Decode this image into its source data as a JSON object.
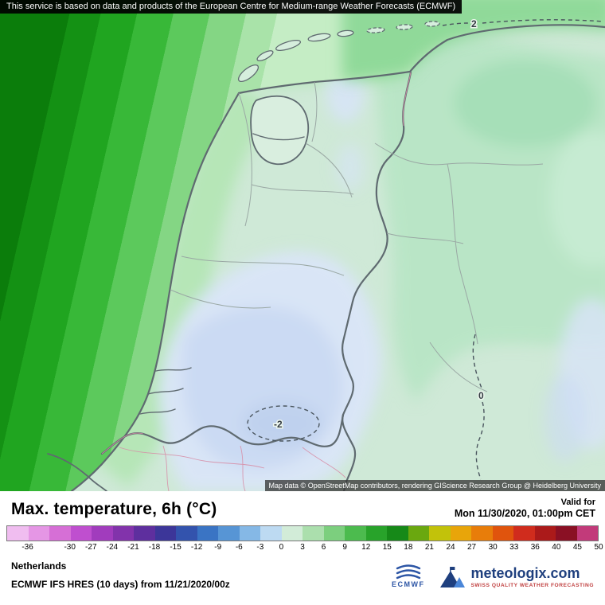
{
  "banner": {
    "text": "This service is based on data and products of the European Centre for Medium-range Weather Forecasts (ECMWF)"
  },
  "map": {
    "attribution": "Map data © OpenStreetMap contributors, rendering GIScience Research Group @ Heidelberg University",
    "contour_labels": [
      {
        "value": "2"
      },
      {
        "value": "0"
      },
      {
        "value": "-2"
      }
    ],
    "palette": {
      "land": "#cfe9d7",
      "sea1": "#0b7d0b",
      "sea2": "#149114",
      "sea3": "#20a520",
      "sea4": "#38b838",
      "sea5": "#5cc95c",
      "sea6": "#84d684",
      "sea7": "#a9e3a9",
      "sea8": "#c5edc5",
      "seaTop": "#7fd38b",
      "coastGreen": "#b2e5b4",
      "teal1": "#b9e5c6",
      "teal2": "#a6dfb8",
      "teal3": "#c6ebd2",
      "blue1": "#d9e5f6",
      "blue2": "#cbdaf3",
      "blue3": "#bfd1ee",
      "blue4": "#d7e4f6",
      "lake": "#d9eedf",
      "island": "#d6eedd",
      "border": "#5f6a70",
      "province": "#9aa8a4",
      "pink": "#d78fa8",
      "contour": "#4a555e"
    }
  },
  "footer": {
    "title": "Max. temperature, 6h (°C)",
    "valid_label": "Valid for",
    "valid_time": "Mon 11/30/2020, 01:00pm CET",
    "region": "Netherlands",
    "model_info": "ECMWF IFS HRES (10 days) from 11/21/2020/00z"
  },
  "colorbar": {
    "unit": "°C",
    "edges": [
      -39,
      -36,
      -33,
      -30,
      -27,
      -24,
      -21,
      -18,
      -15,
      -12,
      -9,
      -6,
      -3,
      0,
      3,
      6,
      9,
      12,
      15,
      18,
      21,
      24,
      27,
      30,
      33,
      36,
      40,
      45,
      50
    ],
    "segments": [
      "#f0bdf0",
      "#e596e5",
      "#d66fd6",
      "#bf4fcf",
      "#a13cbd",
      "#8233ab",
      "#5e2f9e",
      "#3c3699",
      "#3353ad",
      "#3a74c4",
      "#5795d5",
      "#85b8e6",
      "#bddaf2",
      "#d2ecd8",
      "#abdfad",
      "#7ccf7e",
      "#4cbb4e",
      "#28a32a",
      "#168918",
      "#6aa80f",
      "#c2c20a",
      "#e8a50a",
      "#e87d0a",
      "#e0540d",
      "#d02c1d",
      "#ab1a1a",
      "#8a1024",
      "#c23a7a"
    ],
    "labels": [
      {
        "text": "-36",
        "edge": 1
      },
      {
        "text": "-30",
        "edge": 3
      },
      {
        "text": "-27",
        "edge": 4
      },
      {
        "text": "-24",
        "edge": 5
      },
      {
        "text": "-21",
        "edge": 6
      },
      {
        "text": "-18",
        "edge": 7
      },
      {
        "text": "-15",
        "edge": 8
      },
      {
        "text": "-12",
        "edge": 9
      },
      {
        "text": "-9",
        "edge": 10
      },
      {
        "text": "-6",
        "edge": 11
      },
      {
        "text": "-3",
        "edge": 12
      },
      {
        "text": "0",
        "edge": 13
      },
      {
        "text": "3",
        "edge": 14
      },
      {
        "text": "6",
        "edge": 15
      },
      {
        "text": "9",
        "edge": 16
      },
      {
        "text": "12",
        "edge": 17
      },
      {
        "text": "15",
        "edge": 18
      },
      {
        "text": "18",
        "edge": 19
      },
      {
        "text": "21",
        "edge": 20
      },
      {
        "text": "24",
        "edge": 21
      },
      {
        "text": "27",
        "edge": 22
      },
      {
        "text": "30",
        "edge": 23
      },
      {
        "text": "33",
        "edge": 24
      },
      {
        "text": "36",
        "edge": 25
      },
      {
        "text": "40",
        "edge": 26
      },
      {
        "text": "45",
        "edge": 27
      },
      {
        "text": "50",
        "edge": 28
      }
    ]
  },
  "logos": {
    "ecmwf": "ECMWF",
    "brand": "meteologix.com",
    "tagline": "SWISS QUALITY WEATHER FORECASTING"
  }
}
